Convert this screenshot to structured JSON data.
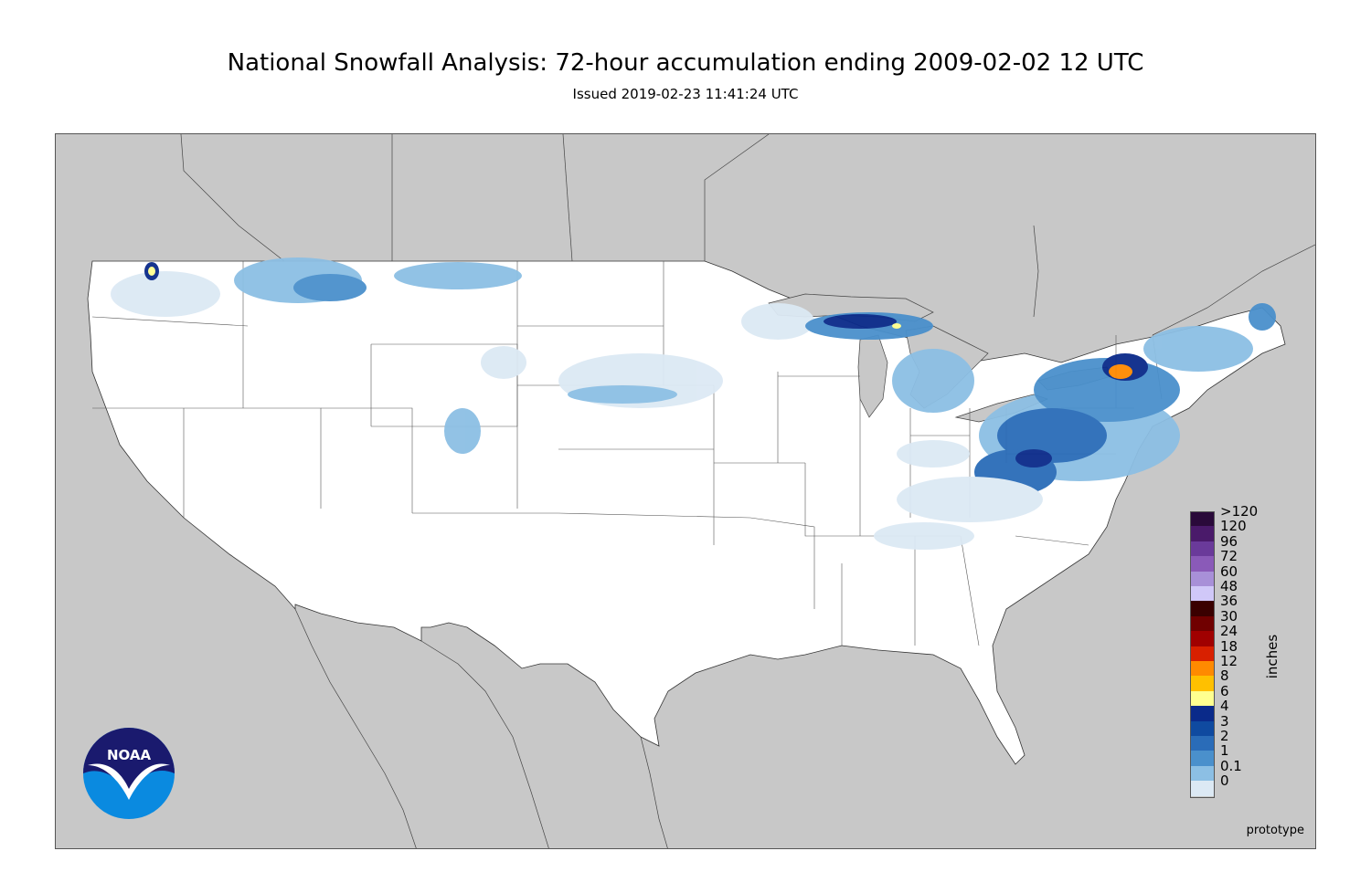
{
  "header": {
    "title": "National Snowfall Analysis: 72-hour accumulation ending 2009-02-02 12 UTC",
    "subtitle": "Issued 2019-02-23 11:41:24 UTC"
  },
  "map": {
    "watermark": "prototype",
    "colors": {
      "background": "#c8c8c8",
      "land": "#ffffff",
      "borders": "#444444"
    }
  },
  "legend": {
    "unit": "inches",
    "levels": [
      {
        "label": ">120",
        "color": "#2a0a3a"
      },
      {
        "label": "120",
        "color": "#4a1a6a"
      },
      {
        "label": "96",
        "color": "#6a3a9a"
      },
      {
        "label": "72",
        "color": "#8a5ab8"
      },
      {
        "label": "60",
        "color": "#a890d8"
      },
      {
        "label": "48",
        "color": "#d0c8f8"
      },
      {
        "label": "36",
        "color": "#3a0000"
      },
      {
        "label": "30",
        "color": "#700000"
      },
      {
        "label": "24",
        "color": "#a00000"
      },
      {
        "label": "18",
        "color": "#d82000"
      },
      {
        "label": "12",
        "color": "#ff8a00"
      },
      {
        "label": "8",
        "color": "#ffc000"
      },
      {
        "label": "6",
        "color": "#ffff90"
      },
      {
        "label": "4",
        "color": "#0a2a8a"
      },
      {
        "label": "3",
        "color": "#0f4aa0"
      },
      {
        "label": "2",
        "color": "#2a6cb8"
      },
      {
        "label": "1",
        "color": "#4a90cc"
      },
      {
        "label": "0.1",
        "color": "#8cbfe4"
      },
      {
        "label": "0",
        "color": "#dce9f4"
      }
    ]
  },
  "logo": {
    "text": "NOAA",
    "colors": {
      "dark": "#1a1a6e",
      "light": "#0a8ae0"
    }
  }
}
